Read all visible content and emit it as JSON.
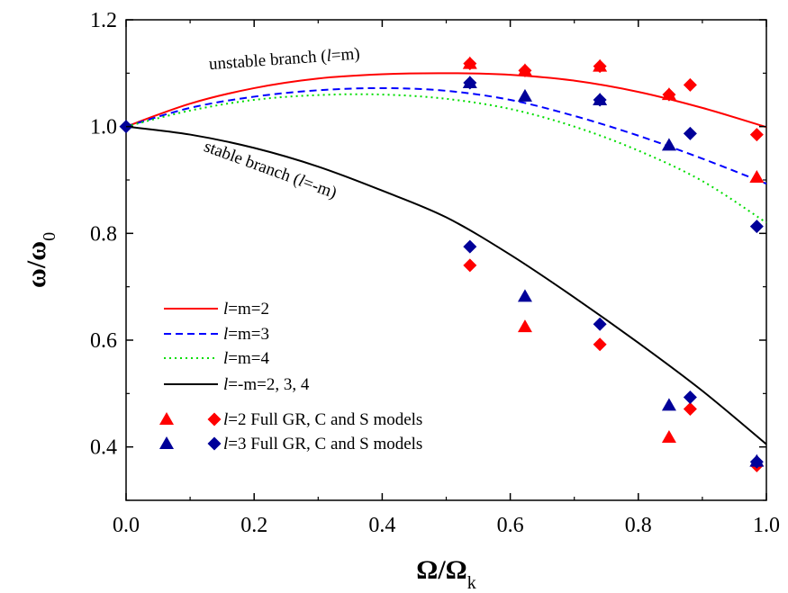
{
  "chart_data": {
    "type": "line",
    "title": "",
    "xlabel": {
      "base": "Ω/Ω",
      "sub": "k"
    },
    "ylabel": {
      "base": "ω/ω",
      "sub": "0"
    },
    "xlim": [
      0.0,
      1.0
    ],
    "ylim": [
      0.3,
      1.2
    ],
    "xticks": [
      0.0,
      0.2,
      0.4,
      0.6,
      0.8,
      1.0
    ],
    "xtick_labels": [
      "0.0",
      "0.2",
      "0.4",
      "0.6",
      "0.8",
      "1.0"
    ],
    "yticks": [
      0.4,
      0.6,
      0.8,
      1.0,
      1.2
    ],
    "ytick_labels": [
      "0.4",
      "0.6",
      "0.8",
      "1.0",
      "1.2"
    ],
    "grid": false,
    "legend_position": "bottom-left",
    "annotations": [
      {
        "prefix": "unstable branch (",
        "var": "l",
        "suffix": "=m)",
        "x": 0.13,
        "y": 1.107,
        "rotate": -4
      },
      {
        "prefix": "stable branch (",
        "var": "l",
        "suffix": "=-m)",
        "x": 0.12,
        "y": 0.955,
        "rotate": 20
      }
    ],
    "series": [
      {
        "name": "l=m=2",
        "legend": {
          "var": "l",
          "rest": "=m=2"
        },
        "style": "solid",
        "color": "#ff0000",
        "x": [
          0.0,
          0.1,
          0.2,
          0.3,
          0.4,
          0.5,
          0.6,
          0.7,
          0.8,
          0.9,
          1.0
        ],
        "y": [
          1.0,
          1.043,
          1.072,
          1.09,
          1.098,
          1.1,
          1.097,
          1.086,
          1.065,
          1.035,
          0.999
        ]
      },
      {
        "name": "l=m=3",
        "legend": {
          "var": "l",
          "rest": "=m=3"
        },
        "style": "dashed",
        "color": "#0000ff",
        "x": [
          0.0,
          0.1,
          0.2,
          0.3,
          0.4,
          0.5,
          0.6,
          0.7,
          0.8,
          0.9,
          1.0
        ],
        "y": [
          1.0,
          1.035,
          1.056,
          1.068,
          1.072,
          1.067,
          1.05,
          1.02,
          0.983,
          0.94,
          0.893
        ]
      },
      {
        "name": "l=m=4",
        "legend": {
          "var": "l",
          "rest": "=m=4"
        },
        "style": "dotted",
        "color": "#00dd00",
        "x": [
          0.0,
          0.1,
          0.2,
          0.3,
          0.4,
          0.5,
          0.6,
          0.7,
          0.8,
          0.9,
          1.0
        ],
        "y": [
          1.0,
          1.03,
          1.05,
          1.059,
          1.06,
          1.052,
          1.033,
          1.0,
          0.955,
          0.898,
          0.82
        ]
      },
      {
        "name": "l=-m=2, 3, 4",
        "legend": {
          "var": "l",
          "rest": "=-m=2, 3, 4"
        },
        "style": "solid",
        "color": "#000000",
        "x": [
          0.0,
          0.1,
          0.2,
          0.3,
          0.4,
          0.5,
          0.6,
          0.7,
          0.8,
          0.9,
          1.0
        ],
        "y": [
          1.0,
          0.985,
          0.96,
          0.925,
          0.88,
          0.83,
          0.76,
          0.68,
          0.595,
          0.505,
          0.405
        ]
      }
    ],
    "markers": [
      {
        "name": "l=2 Full GR, C and S models",
        "legend": {
          "var": "l",
          "rest": "=2 Full GR, C and S models"
        },
        "color": "#ff0000",
        "triangle": {
          "x": [
            0.537,
            0.623,
            0.74,
            0.848,
            0.985
          ],
          "y": [
            1.118,
            1.105,
            1.113,
            1.06,
            0.905
          ]
        },
        "diamond": {
          "x": [
            0.537,
            0.623,
            0.74,
            0.848,
            0.881,
            0.985
          ],
          "y": [
            1.118,
            1.105,
            1.113,
            1.06,
            1.078,
            0.985
          ]
        },
        "triangle_low": {
          "x": [
            0.623,
            0.848
          ],
          "y": [
            0.625,
            0.418
          ]
        },
        "diamond_low": {
          "x": [
            0.537,
            0.74,
            0.881,
            0.985
          ],
          "y": [
            0.74,
            0.592,
            0.471,
            0.365
          ]
        }
      },
      {
        "name": "l=3 Full GR, C and S models",
        "legend": {
          "var": "l",
          "rest": "=3 Full GR, C and S models"
        },
        "color": "#000099",
        "triangle": {
          "x": [
            0.537,
            0.623,
            0.74,
            0.848
          ],
          "y": [
            1.082,
            1.057,
            1.05,
            0.965
          ]
        },
        "diamond": {
          "x": [
            0.537,
            0.74,
            0.881,
            0.985
          ],
          "y": [
            1.082,
            1.05,
            0.987,
            0.813
          ]
        },
        "triangle_low": {
          "x": [
            0.623,
            0.848,
            0.985
          ],
          "y": [
            0.682,
            0.478,
            0.373
          ]
        },
        "diamond_low": {
          "x": [
            0.537,
            0.74,
            0.881,
            0.985
          ],
          "y": [
            0.775,
            0.63,
            0.493,
            0.372
          ]
        }
      }
    ],
    "origin_marker": {
      "x": 0.0,
      "y": 1.0
    }
  }
}
